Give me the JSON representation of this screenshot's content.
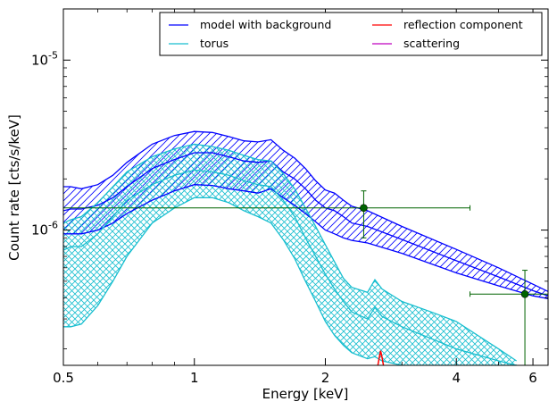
{
  "chart_data": {
    "type": "line",
    "xlabel": "Energy [keV]",
    "ylabel": "Count rate [cts/s/keV]",
    "xscale": "log",
    "yscale": "log",
    "xlim": [
      0.5,
      6.5
    ],
    "ylim": [
      1.6e-07,
      2e-05
    ],
    "grid": false,
    "legend_location": "top-right",
    "legend_columns": 2,
    "x_ticks": [
      {
        "value": 0.5,
        "label": "0.5"
      },
      {
        "value": 1,
        "label": "1"
      },
      {
        "value": 2,
        "label": "2"
      },
      {
        "value": 4,
        "label": "4"
      },
      {
        "value": 6,
        "label": "6"
      }
    ],
    "y_ticks": [
      {
        "value": 1e-06,
        "base": "10",
        "exp": "-6"
      },
      {
        "value": 1e-05,
        "base": "10",
        "exp": "-5"
      }
    ],
    "series": [
      {
        "name": "model with background",
        "color": "#0000ff",
        "style": "band-hatched",
        "x": [
          0.5,
          0.52,
          0.55,
          0.6,
          0.65,
          0.7,
          0.8,
          0.9,
          1.0,
          1.1,
          1.2,
          1.3,
          1.4,
          1.5,
          1.6,
          1.7,
          1.8,
          1.9,
          2.0,
          2.1,
          2.2,
          2.3,
          2.5,
          3.0,
          4.0,
          5.0,
          6.0,
          6.5
        ],
        "center": [
          1.3e-06,
          1.33e-06,
          1.33e-06,
          1.4e-06,
          1.55e-06,
          1.8e-06,
          2.3e-06,
          2.6e-06,
          2.85e-06,
          2.85e-06,
          2.7e-06,
          2.55e-06,
          2.5e-06,
          2.55e-06,
          2.2e-06,
          2e-06,
          1.75e-06,
          1.5e-06,
          1.35e-06,
          1.3e-06,
          1.2e-06,
          1.1e-06,
          1.05e-06,
          8.8e-07,
          6.6e-07,
          5.3e-07,
          4.4e-07,
          4.1e-07
        ],
        "lower": [
          9.5e-07,
          9.5e-07,
          9.5e-07,
          1e-06,
          1.1e-06,
          1.25e-06,
          1.5e-06,
          1.7e-06,
          1.85e-06,
          1.83e-06,
          1.75e-06,
          1.7e-06,
          1.65e-06,
          1.75e-06,
          1.55e-06,
          1.4e-06,
          1.25e-06,
          1.12e-06,
          1e-06,
          9.5e-07,
          9e-07,
          8.7e-07,
          8.4e-07,
          7.3e-07,
          5.6e-07,
          4.7e-07,
          4.1e-07,
          3.95e-07
        ],
        "upper": [
          1.8e-06,
          1.8e-06,
          1.75e-06,
          1.85e-06,
          2.1e-06,
          2.5e-06,
          3.2e-06,
          3.6e-06,
          3.8e-06,
          3.75e-06,
          3.55e-06,
          3.35e-06,
          3.3e-06,
          3.4e-06,
          2.95e-06,
          2.65e-06,
          2.3e-06,
          1.95e-06,
          1.72e-06,
          1.65e-06,
          1.5e-06,
          1.38e-06,
          1.3e-06,
          1.05e-06,
          7.7e-07,
          6e-07,
          4.8e-07,
          4.35e-07
        ]
      },
      {
        "name": "torus",
        "color": "#17becf",
        "style": "band-crosshatched",
        "x": [
          0.5,
          0.52,
          0.55,
          0.6,
          0.65,
          0.7,
          0.8,
          0.9,
          1.0,
          1.1,
          1.2,
          1.3,
          1.4,
          1.5,
          1.6,
          1.7,
          1.8,
          1.9,
          2.0,
          2.1,
          2.2,
          2.3,
          2.5,
          2.6,
          2.7,
          3.0,
          3.5,
          4.0,
          5.0,
          5.5
        ],
        "center": [
          7.6e-07,
          8e-07,
          8e-07,
          9.5e-07,
          1.2e-06,
          1.5e-06,
          1.85e-06,
          2.1e-06,
          2.25e-06,
          2.2e-06,
          2.1e-06,
          1.95e-06,
          1.85e-06,
          1.8e-06,
          1.5e-06,
          1.2e-06,
          9e-07,
          7e-07,
          5.5e-07,
          4.5e-07,
          3.8e-07,
          3.3e-07,
          3e-07,
          3.5e-07,
          3.1e-07,
          2.7e-07,
          2.3e-07,
          2e-07,
          1.7e-07,
          1.6e-07
        ],
        "lower": [
          2.7e-07,
          2.7e-07,
          2.8e-07,
          3.6e-07,
          5e-07,
          7e-07,
          1.1e-06,
          1.35e-06,
          1.55e-06,
          1.55e-06,
          1.45e-06,
          1.3e-06,
          1.2e-06,
          1.1e-06,
          8.8e-07,
          6.8e-07,
          5e-07,
          3.8e-07,
          2.9e-07,
          2.4e-07,
          2.1e-07,
          1.9e-07,
          1.75e-07,
          1.8e-07,
          1.7e-07,
          1.6e-07,
          1.6e-07,
          1.6e-07,
          1.6e-07,
          1.6e-07
        ],
        "upper": [
          1.1e-06,
          1.15e-06,
          1.2e-06,
          1.45e-06,
          1.8e-06,
          2.2e-06,
          2.7e-06,
          3e-06,
          3.2e-06,
          3.1e-06,
          2.95e-06,
          2.75e-06,
          2.6e-06,
          2.55e-06,
          2.15e-06,
          1.75e-06,
          1.35e-06,
          1.05e-06,
          8.2e-07,
          6.5e-07,
          5.2e-07,
          4.6e-07,
          4.3e-07,
          5.1e-07,
          4.5e-07,
          3.8e-07,
          3.3e-07,
          2.9e-07,
          2e-07,
          1.7e-07
        ]
      },
      {
        "name": "reflection component",
        "color": "#ff0000",
        "style": "line",
        "x": [
          2.64,
          2.66,
          2.68,
          2.7,
          2.72
        ],
        "y": [
          1.6e-07,
          1.78e-07,
          1.95e-07,
          1.78e-07,
          1.6e-07
        ]
      },
      {
        "name": "scattering",
        "color": "#bf00bf",
        "style": "line",
        "x": [],
        "y": []
      }
    ],
    "data_points": {
      "color": "#006400",
      "points": [
        {
          "x": 2.45,
          "y": 1.35e-06,
          "xerr": [
            0.5,
            4.3
          ],
          "yerr": [
            9e-07,
            1.7e-06
          ]
        },
        {
          "x": 5.75,
          "y": 4.2e-07,
          "xerr": [
            4.3,
            6.5
          ],
          "yerr": [
            1.6e-07,
            5.8e-07
          ]
        }
      ]
    }
  }
}
